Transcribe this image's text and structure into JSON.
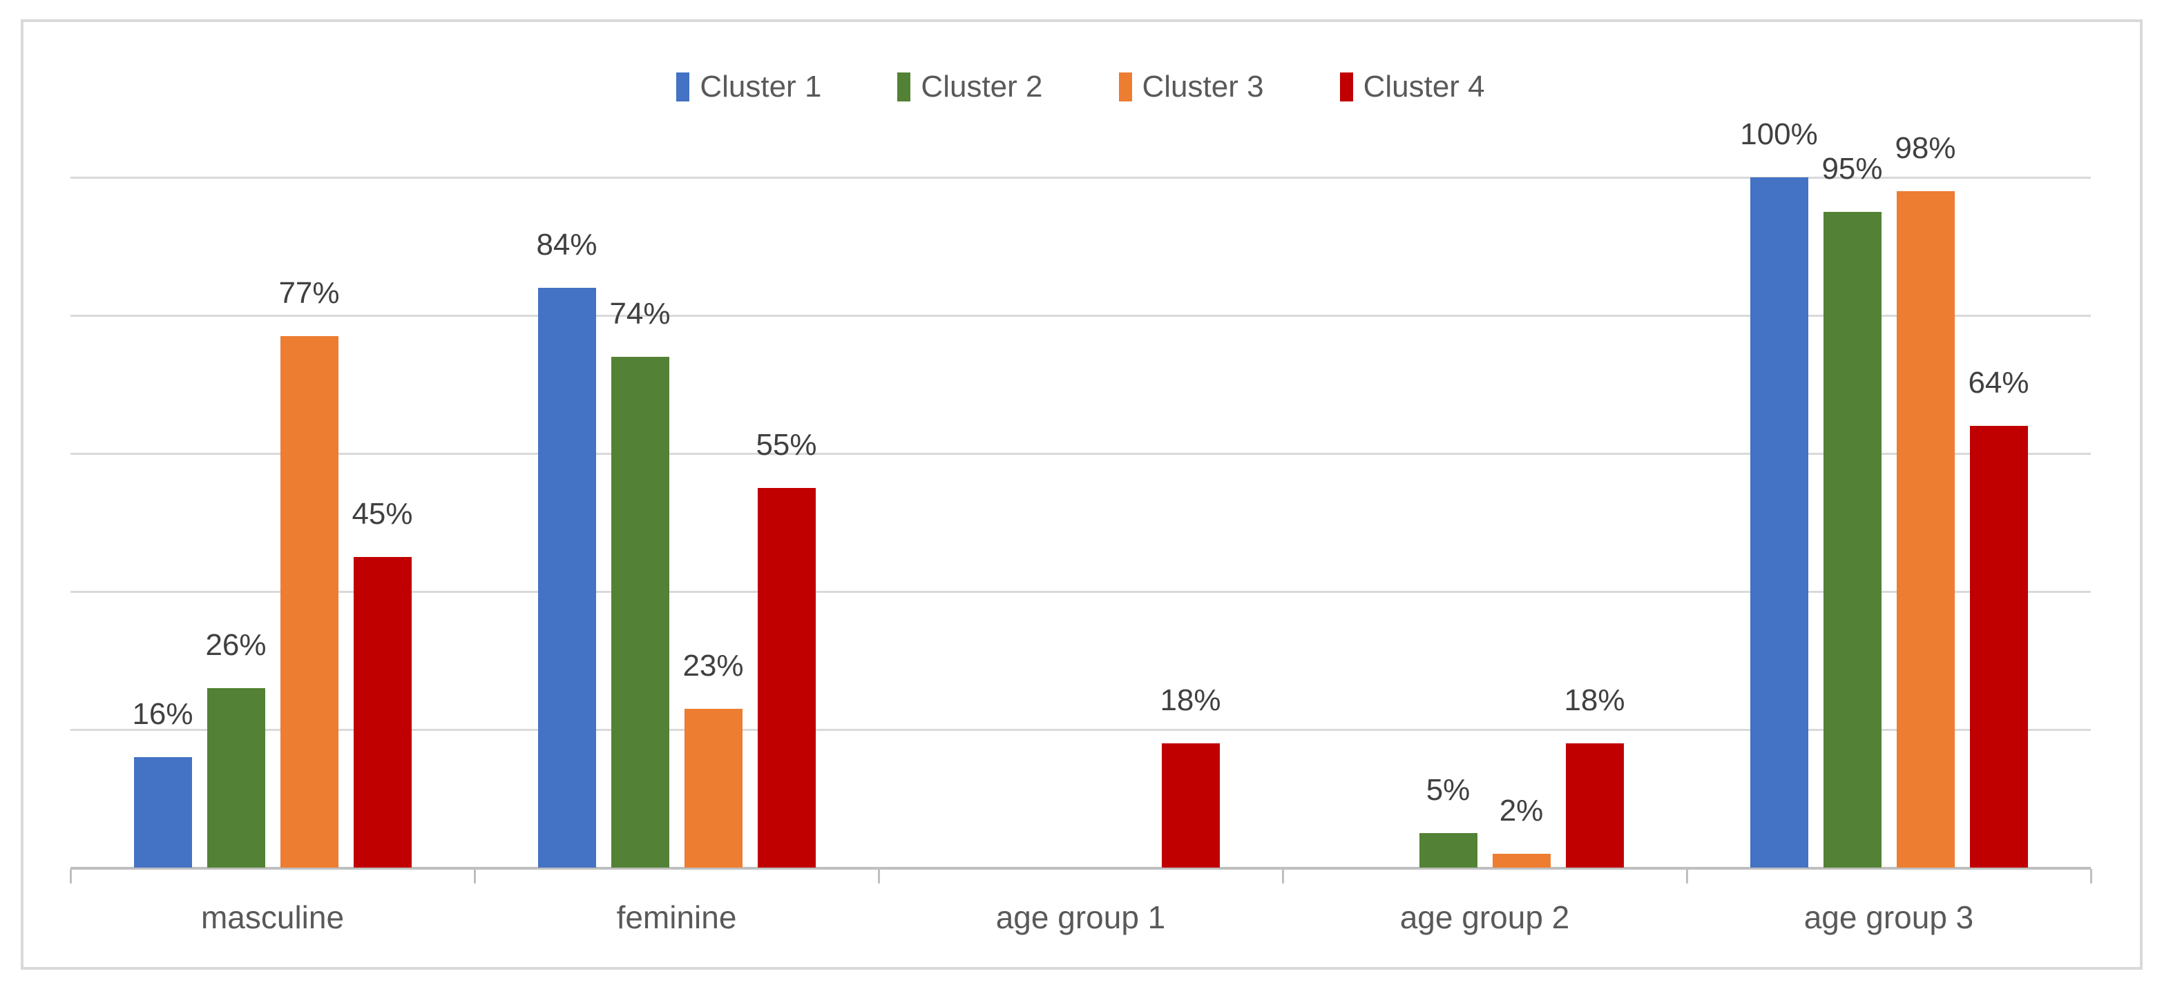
{
  "chart_data": {
    "type": "bar",
    "categories": [
      "masculine",
      "feminine",
      "age group 1",
      "age group 2",
      "age group 3"
    ],
    "series": [
      {
        "name": "Cluster 1",
        "color": "#4472C4",
        "values": [
          16,
          84,
          0,
          0,
          100
        ]
      },
      {
        "name": "Cluster 2",
        "color": "#538135",
        "values": [
          26,
          74,
          0,
          5,
          95
        ]
      },
      {
        "name": "Cluster 3",
        "color": "#ED7D31",
        "values": [
          77,
          23,
          0,
          2,
          98
        ]
      },
      {
        "name": "Cluster 4",
        "color": "#C00000",
        "values": [
          45,
          55,
          18,
          18,
          64
        ]
      }
    ],
    "data_labels": [
      [
        "16%",
        "84%",
        "",
        "",
        "100%"
      ],
      [
        "26%",
        "74%",
        "",
        "5%",
        "95%"
      ],
      [
        "77%",
        "23%",
        "",
        "2%",
        "98%"
      ],
      [
        "45%",
        "55%",
        "18%",
        "18%",
        "64%"
      ]
    ],
    "value_suffix": "%",
    "ylim": [
      0,
      100
    ],
    "gridline_step_pct": 20,
    "grid_on": true,
    "legend_position": "top",
    "data_label_position": "outside-end",
    "zero_values_unlabeled": true,
    "y_axis_tick_labels": "none",
    "colors": {
      "background": "#FFFFFF",
      "chart_border": "#D9D9D9",
      "gridline": "#D9D9D9",
      "axis_line": "#BFBFBF",
      "data_label_text": "#404040",
      "category_text": "#595959",
      "legend_text": "#595959"
    }
  }
}
